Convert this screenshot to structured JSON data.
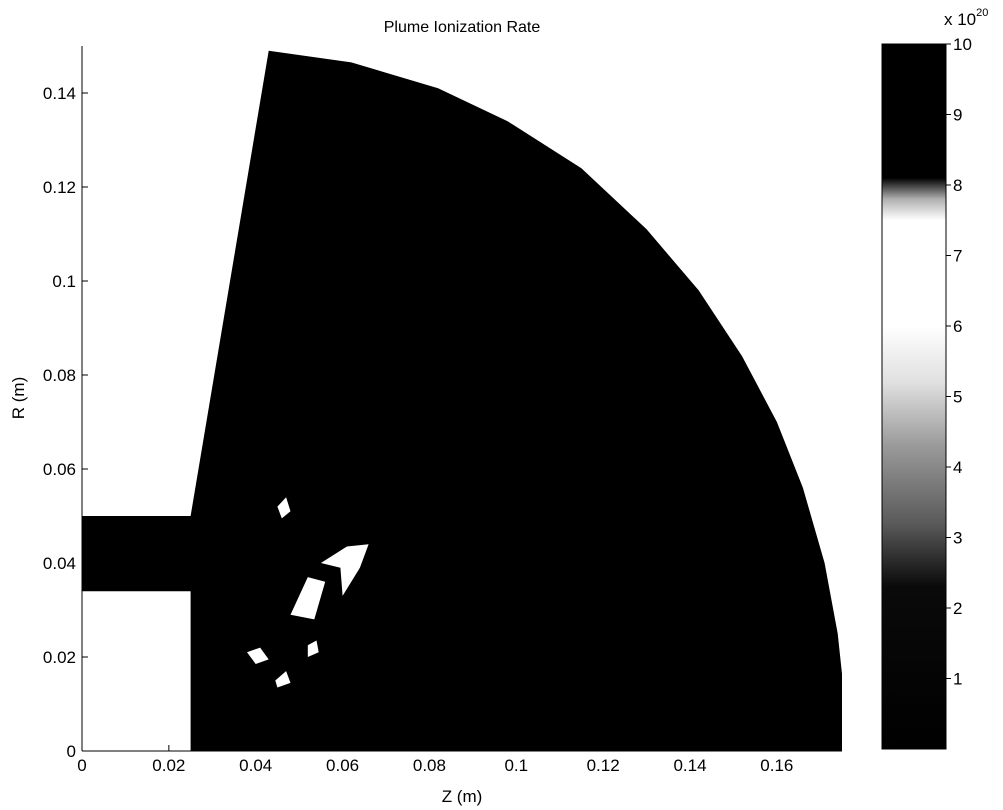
{
  "chart_data": {
    "type": "heatmap",
    "title": "Plume Ionization Rate",
    "xlabel": "Z (m)",
    "ylabel": "R (m)",
    "xlim": [
      0,
      0.175
    ],
    "ylim": [
      0,
      0.15
    ],
    "x_ticks": [
      0,
      0.02,
      0.04,
      0.06,
      0.08,
      0.1,
      0.12,
      0.14,
      0.16
    ],
    "x_tick_labels": [
      "0",
      "0.02",
      "0.04",
      "0.06",
      "0.08",
      "0.1",
      "0.12",
      "0.14",
      "0.16"
    ],
    "y_ticks": [
      0,
      0.02,
      0.04,
      0.06,
      0.08,
      0.1,
      0.12,
      0.14
    ],
    "y_tick_labels": [
      "0",
      "0.02",
      "0.04",
      "0.06",
      "0.08",
      "0.1",
      "0.12",
      "0.14"
    ],
    "grid": false,
    "domain_boundary": [
      [
        0,
        0.034
      ],
      [
        0.025,
        0.034
      ],
      [
        0.025,
        0
      ],
      [
        0.176,
        0
      ],
      [
        0.1755,
        0.012
      ],
      [
        0.174,
        0.025
      ],
      [
        0.171,
        0.04
      ],
      [
        0.166,
        0.056
      ],
      [
        0.16,
        0.07
      ],
      [
        0.152,
        0.084
      ],
      [
        0.142,
        0.098
      ],
      [
        0.13,
        0.111
      ],
      [
        0.115,
        0.124
      ],
      [
        0.098,
        0.134
      ],
      [
        0.082,
        0.141
      ],
      [
        0.062,
        0.1465
      ],
      [
        0.043,
        0.149
      ],
      [
        0.025,
        0.05
      ],
      [
        0,
        0.05
      ]
    ],
    "bright_regions": [
      [
        [
          0.055,
          0.04
        ],
        [
          0.061,
          0.0435
        ],
        [
          0.066,
          0.044
        ],
        [
          0.064,
          0.039
        ],
        [
          0.06,
          0.033
        ],
        [
          0.0595,
          0.039
        ]
      ],
      [
        [
          0.048,
          0.029
        ],
        [
          0.052,
          0.037
        ],
        [
          0.056,
          0.036
        ],
        [
          0.0535,
          0.028
        ]
      ],
      [
        [
          0.045,
          0.052
        ],
        [
          0.047,
          0.054
        ],
        [
          0.048,
          0.051
        ],
        [
          0.046,
          0.0495
        ]
      ],
      [
        [
          0.038,
          0.021
        ],
        [
          0.041,
          0.022
        ],
        [
          0.043,
          0.0195
        ],
        [
          0.04,
          0.0185
        ]
      ],
      [
        [
          0.0445,
          0.015
        ],
        [
          0.047,
          0.017
        ],
        [
          0.048,
          0.0145
        ],
        [
          0.045,
          0.0135
        ]
      ],
      [
        [
          0.052,
          0.0225
        ],
        [
          0.054,
          0.0235
        ],
        [
          0.0545,
          0.021
        ],
        [
          0.052,
          0.02
        ]
      ]
    ],
    "colorbar": {
      "clim": [
        0,
        1e+21
      ],
      "ticks": [
        1,
        2,
        3,
        4,
        5,
        6,
        7,
        8,
        9,
        10
      ],
      "tick_labels": [
        "1",
        "2",
        "3",
        "4",
        "5",
        "6",
        "7",
        "8",
        "9",
        "10"
      ],
      "multiplier_base": "x 10",
      "multiplier_exponent": "20",
      "gradient": [
        {
          "value": 0,
          "color": "#000000"
        },
        {
          "value": 2.3,
          "color": "#0a0a0a"
        },
        {
          "value": 3.2,
          "color": "#5a5a5a"
        },
        {
          "value": 4.3,
          "color": "#9a9a9a"
        },
        {
          "value": 5.2,
          "color": "#e0e0e0"
        },
        {
          "value": 6,
          "color": "#ffffff"
        },
        {
          "value": 7.5,
          "color": "#ffffff"
        },
        {
          "value": 7.8,
          "color": "#b0b0b0"
        },
        {
          "value": 8.1,
          "color": "#000000"
        },
        {
          "value": 10,
          "color": "#000000"
        }
      ]
    },
    "colors": {
      "field": "#000000",
      "highlight": "#ffffff",
      "background": "#ffffff"
    }
  }
}
